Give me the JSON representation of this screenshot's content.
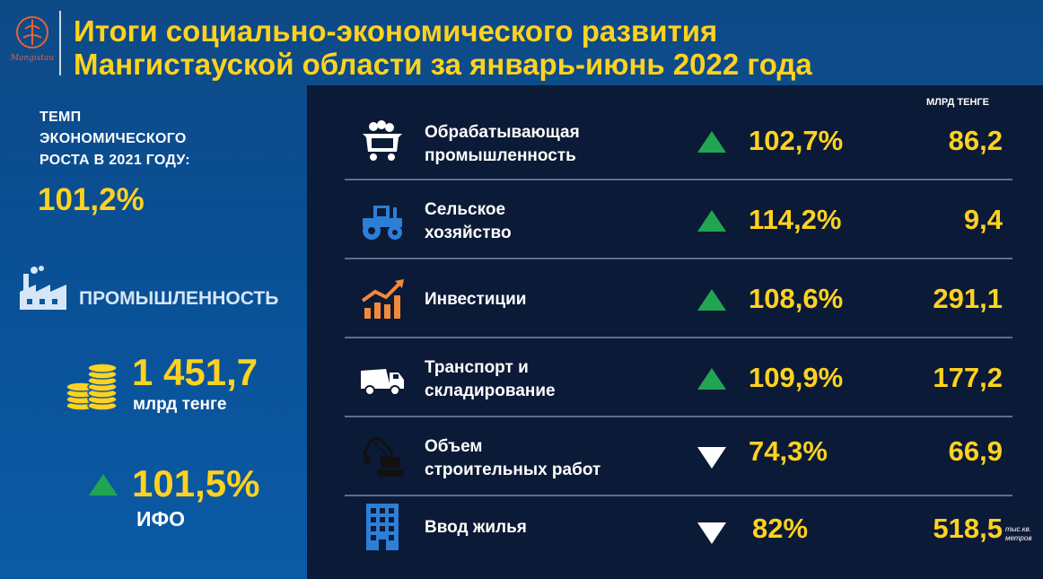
{
  "header": {
    "logo_text": "Mangistau",
    "title_line1": "Итоги социально-экономического развития",
    "title_line2": "Мангистауской области за январь-июнь 2022 года"
  },
  "left": {
    "tempo_line1": "ТЕМП",
    "tempo_line2": "ЭКОНОМИЧЕСКОГО",
    "tempo_line3": "РОСТА В 2021 ГОДУ:",
    "tempo_value": "101,2%",
    "industry_label": "ПРОМЫШЛЕННОСТЬ",
    "industry_value": "1 451,7",
    "industry_unit": "млрд тенге",
    "ifo_value": "101,5%",
    "ifo_label": "ИФО",
    "ifo_trend": "up"
  },
  "panel": {
    "unit_label": "МЛРД ТЕНГЕ",
    "rows": [
      {
        "icon": "mine-cart-icon",
        "label_line1": "Обрабатывающая",
        "label_line2": "промышленность",
        "trend": "up",
        "pct": "102,7%",
        "value": "86,2"
      },
      {
        "icon": "tractor-icon",
        "label_line1": "Сельское",
        "label_line2": "хозяйство",
        "trend": "up",
        "pct": "114,2%",
        "value": "9,4"
      },
      {
        "icon": "growth-chart-icon",
        "label_line1": "Инвестиции",
        "label_line2": "",
        "trend": "up",
        "pct": "108,6%",
        "value": "291,1"
      },
      {
        "icon": "truck-icon",
        "label_line1": "Транспорт и",
        "label_line2": "складирование",
        "trend": "up",
        "pct": "109,9%",
        "value": "177,2"
      },
      {
        "icon": "excavator-icon",
        "label_line1": "Объем",
        "label_line2": "строительных работ",
        "trend": "down",
        "pct": "74,3%",
        "value": "66,9"
      },
      {
        "icon": "building-icon",
        "label_line1": "Ввод жилья",
        "label_line2": "",
        "trend": "down",
        "pct": "82%",
        "value": "518,5"
      }
    ],
    "housing_unit_line1": "тыс.кв.",
    "housing_unit_line2": "метров"
  },
  "colors": {
    "accent": "#ffd21f",
    "up_arrow": "#22a552",
    "down_arrow": "#ffffff",
    "panel_bg": "#0b1a36"
  }
}
